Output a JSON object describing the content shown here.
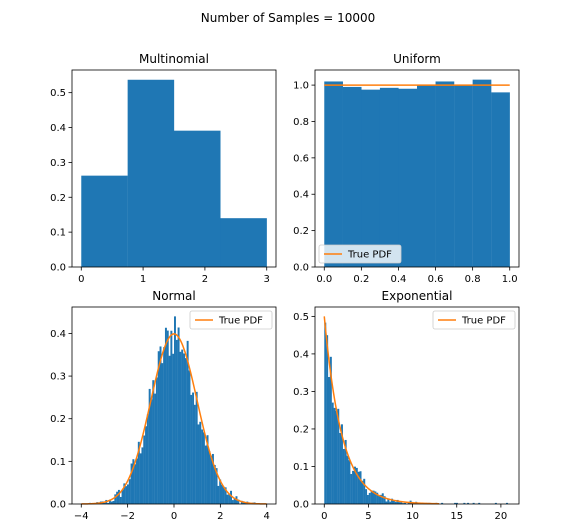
{
  "figure": {
    "suptitle": "Number of Samples = 10000"
  },
  "colors": {
    "bars": "#1f77b4",
    "pdf_line": "#ff7f0e"
  },
  "chart_data": [
    {
      "type": "bar",
      "title": "Multinomial",
      "bin_edges": [
        0,
        0.75,
        1.5,
        2.25,
        3.0
      ],
      "values": [
        0.262,
        0.537,
        0.391,
        0.14
      ],
      "xlim": [
        -0.15,
        3.15
      ],
      "ylim": [
        0,
        0.565
      ],
      "xticks": [
        0,
        1,
        2,
        3
      ],
      "xtick_labels": [
        "0",
        "1",
        "2",
        "3"
      ],
      "yticks": [
        0,
        0.1,
        0.2,
        0.3,
        0.4,
        0.5
      ],
      "ytick_labels": [
        "0.0",
        "0.1",
        "0.2",
        "0.3",
        "0.4",
        "0.5"
      ],
      "legend": null
    },
    {
      "type": "bar",
      "title": "Uniform",
      "bin_edges": [
        0,
        0.1,
        0.2,
        0.3,
        0.4,
        0.5,
        0.6,
        0.7,
        0.8,
        0.9,
        1.0
      ],
      "values": [
        1.02,
        0.99,
        0.975,
        0.985,
        0.98,
        1.0,
        1.02,
        1.0,
        1.03,
        0.96
      ],
      "line": {
        "name": "True PDF",
        "x": [
          0,
          1
        ],
        "y": [
          1.0,
          1.0
        ]
      },
      "xlim": [
        -0.05,
        1.05
      ],
      "ylim": [
        0,
        1.083
      ],
      "xticks": [
        0,
        0.2,
        0.4,
        0.6,
        0.8,
        1.0
      ],
      "xtick_labels": [
        "0.0",
        "0.2",
        "0.4",
        "0.6",
        "0.8",
        "1.0"
      ],
      "yticks": [
        0,
        0.2,
        0.4,
        0.6,
        0.8,
        1.0
      ],
      "ytick_labels": [
        "0.0",
        "0.2",
        "0.4",
        "0.6",
        "0.8",
        "1.0"
      ],
      "legend": {
        "label": "True PDF",
        "placement": "lower-left"
      }
    },
    {
      "type": "bar",
      "title": "Normal",
      "distribution": "normal",
      "hist_range": [
        -3.9,
        3.9
      ],
      "n_bins": 100,
      "peak_value": 0.44,
      "line": {
        "name": "True PDF",
        "function": "standard-normal-pdf",
        "x_range": [
          -4,
          4
        ]
      },
      "xlim": [
        -4.4,
        4.4
      ],
      "ylim": [
        0,
        0.462
      ],
      "xticks": [
        -4,
        -2,
        0,
        2,
        4
      ],
      "xtick_labels": [
        "−4",
        "−2",
        "0",
        "2",
        "4"
      ],
      "yticks": [
        0,
        0.1,
        0.2,
        0.3,
        0.4
      ],
      "ytick_labels": [
        "0.0",
        "0.1",
        "0.2",
        "0.3",
        "0.4"
      ],
      "legend": {
        "label": "True PDF",
        "placement": "top-right"
      }
    },
    {
      "type": "bar",
      "title": "Exponential",
      "distribution": "exponential",
      "rate": 0.5,
      "hist_range": [
        0,
        21
      ],
      "n_bins": 100,
      "line": {
        "name": "True PDF",
        "function": "exponential-pdf",
        "x_range": [
          0,
          13
        ]
      },
      "xlim": [
        -1.05,
        22.05
      ],
      "ylim": [
        0,
        0.525
      ],
      "xticks": [
        0,
        5,
        10,
        15,
        20
      ],
      "xtick_labels": [
        "0",
        "5",
        "10",
        "15",
        "20"
      ],
      "yticks": [
        0,
        0.1,
        0.2,
        0.3,
        0.4,
        0.5
      ],
      "ytick_labels": [
        "0.0",
        "0.1",
        "0.2",
        "0.3",
        "0.4",
        "0.5"
      ],
      "legend": {
        "label": "True PDF",
        "placement": "top-right"
      }
    }
  ]
}
